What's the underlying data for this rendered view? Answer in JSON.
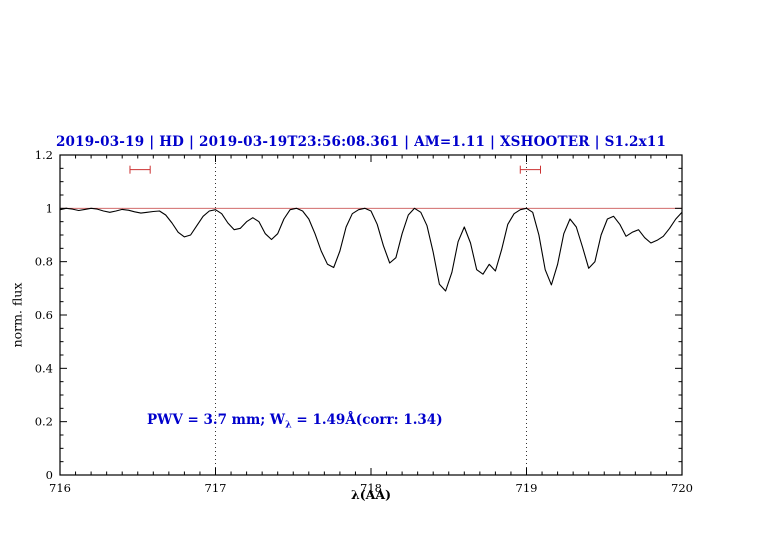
{
  "chart_data": {
    "type": "line",
    "title": "2019-03-19 | HD | 2019-03-19T23:56:08.361 | AM=1.11 | XSHOOTER | S1.2x11",
    "xlabel": "λ(AA)",
    "ylabel": "norm. flux",
    "xlim": [
      716,
      720
    ],
    "ylim": [
      0,
      1.2
    ],
    "x_ticks": [
      716,
      717,
      718,
      719,
      720
    ],
    "x_tick_labels": [
      "716",
      "717",
      "718",
      "719",
      "720"
    ],
    "y_ticks": [
      0,
      0.2,
      0.4,
      0.6,
      0.8,
      1,
      1.2
    ],
    "y_tick_labels": [
      "0",
      "0.2",
      "0.4",
      "0.6",
      "0.8",
      "1",
      "1.2"
    ],
    "grid": false,
    "annotation": "PWV = 3.7 mm; Wλ = 1.49Å(corr: 1.34)",
    "annotation_parts": {
      "prefix": "PWV = 3.7 mm; W",
      "sub": "λ",
      "suffix": " = 1.49Å(corr: 1.34)"
    },
    "continuum": {
      "y": 1.0
    },
    "vlines": [
      717,
      719
    ],
    "markers": [
      {
        "x1": 716.45,
        "x2": 716.58,
        "y": 1.145
      },
      {
        "x1": 718.96,
        "x2": 719.09,
        "y": 1.145
      }
    ],
    "colors": {
      "title": "#0000cc",
      "annotation": "#0000cc",
      "continuum": "#cc5555",
      "marker": "#cc3333",
      "spectrum": "#000000",
      "frame": "#000000"
    },
    "series": [
      {
        "name": "spectrum",
        "color": "#000000",
        "x": [
          716.0,
          716.04,
          716.08,
          716.12,
          716.16,
          716.2,
          716.24,
          716.28,
          716.32,
          716.36,
          716.4,
          716.44,
          716.48,
          716.52,
          716.56,
          716.6,
          716.64,
          716.68,
          716.72,
          716.76,
          716.8,
          716.84,
          716.88,
          716.92,
          716.96,
          717.0,
          717.04,
          717.08,
          717.12,
          717.16,
          717.2,
          717.24,
          717.28,
          717.32,
          717.36,
          717.4,
          717.44,
          717.48,
          717.52,
          717.56,
          717.6,
          717.64,
          717.68,
          717.72,
          717.76,
          717.8,
          717.84,
          717.88,
          717.92,
          717.96,
          718.0,
          718.04,
          718.08,
          718.12,
          718.16,
          718.2,
          718.24,
          718.28,
          718.32,
          718.36,
          718.4,
          718.44,
          718.48,
          718.52,
          718.56,
          718.6,
          718.64,
          718.68,
          718.72,
          718.76,
          718.8,
          718.84,
          718.88,
          718.92,
          718.96,
          719.0,
          719.04,
          719.08,
          719.12,
          719.16,
          719.2,
          719.24,
          719.28,
          719.32,
          719.36,
          719.4,
          719.44,
          719.48,
          719.52,
          719.56,
          719.6,
          719.64,
          719.68,
          719.72,
          719.76,
          719.8,
          719.84,
          719.88,
          719.92,
          719.96,
          720.0
        ],
        "y": [
          0.995,
          1.0,
          0.997,
          0.992,
          0.996,
          1.0,
          0.997,
          0.99,
          0.985,
          0.99,
          0.996,
          0.993,
          0.987,
          0.982,
          0.985,
          0.988,
          0.99,
          0.975,
          0.945,
          0.91,
          0.893,
          0.9,
          0.935,
          0.97,
          0.99,
          0.995,
          0.98,
          0.945,
          0.92,
          0.925,
          0.95,
          0.965,
          0.95,
          0.905,
          0.883,
          0.905,
          0.96,
          0.995,
          1.0,
          0.99,
          0.96,
          0.905,
          0.84,
          0.79,
          0.778,
          0.84,
          0.93,
          0.98,
          0.995,
          1.0,
          0.99,
          0.94,
          0.86,
          0.795,
          0.815,
          0.905,
          0.975,
          1.0,
          0.985,
          0.935,
          0.835,
          0.715,
          0.69,
          0.76,
          0.875,
          0.93,
          0.87,
          0.77,
          0.753,
          0.79,
          0.765,
          0.845,
          0.94,
          0.98,
          0.995,
          1.0,
          0.985,
          0.9,
          0.77,
          0.713,
          0.79,
          0.905,
          0.96,
          0.93,
          0.855,
          0.775,
          0.8,
          0.9,
          0.96,
          0.97,
          0.94,
          0.895,
          0.91,
          0.92,
          0.89,
          0.87,
          0.88,
          0.895,
          0.925,
          0.96,
          0.985
        ]
      }
    ]
  }
}
